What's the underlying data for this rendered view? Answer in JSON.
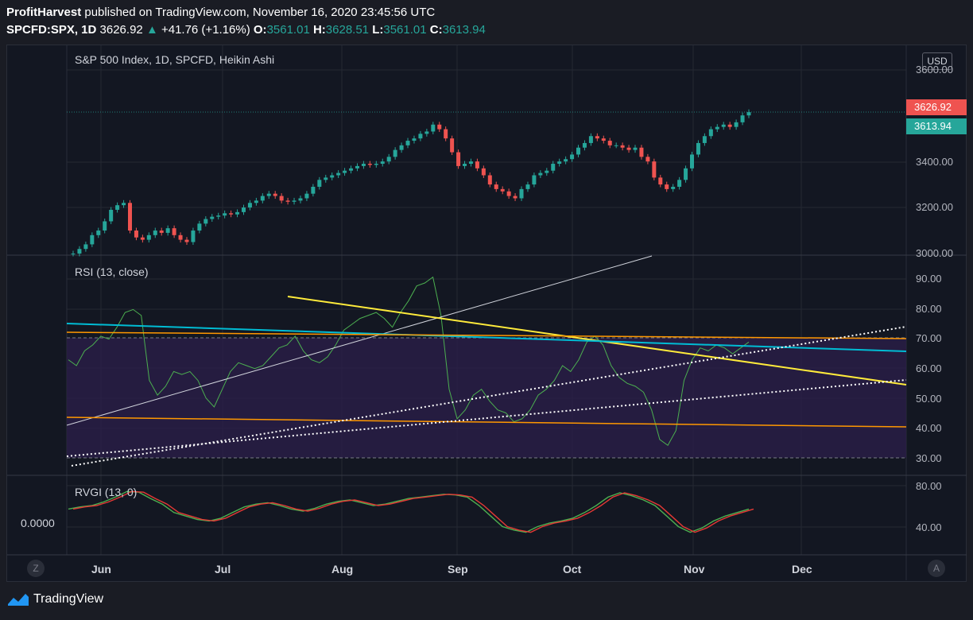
{
  "header": {
    "publisher": "ProfitHarvest",
    "published_text": "published on TradingView.com, November 16, 2020 23:45:56 UTC",
    "symbol": "SPCFD:SPX, 1D",
    "last": "3626.92",
    "change": "+41.76 (+1.16%)",
    "o_label": "O:",
    "o_value": "3561.01",
    "h_label": "H:",
    "h_value": "3628.51",
    "l_label": "L:",
    "l_value": "3561.01",
    "c_label": "C:",
    "c_value": "3613.94"
  },
  "main_pane": {
    "title": "S&P 500 Index, 1D, SPCFD, Heikin Ashi",
    "currency": "USD",
    "price_axis": [
      "3600.00",
      "3400.00",
      "3200.00",
      "3000.00"
    ],
    "last_price_tag": "3626.92",
    "close_price_tag": "3613.94",
    "colors": {
      "up": "#26a69a",
      "down": "#ef5350",
      "tag_last": "#ef5350",
      "tag_close": "#26a69a"
    }
  },
  "rsi_pane": {
    "title": "RSI (13, close)",
    "axis": [
      "90.00",
      "80.00",
      "70.00",
      "60.00",
      "50.00",
      "40.00",
      "30.00"
    ]
  },
  "rvgi_pane": {
    "title": "RVGI (13, 0)",
    "left_value": "0.0000",
    "axis": [
      "80.00",
      "40.00"
    ]
  },
  "time_axis": [
    "Jun",
    "Jul",
    "Aug",
    "Sep",
    "Oct",
    "Nov",
    "Dec"
  ],
  "buttons": {
    "log_scale": "Z",
    "auto_scale": "A"
  },
  "footer": {
    "brand": "TradingView"
  },
  "chart_data": {
    "type": "candlestick",
    "title": "S&P 500 Index, 1D, SPCFD, Heikin Ashi",
    "x": [
      "Jun",
      "Jul",
      "Aug",
      "Sep",
      "Oct",
      "Nov",
      "Dec"
    ],
    "price_close": [
      3000,
      3020,
      3040,
      3080,
      3100,
      3140,
      3190,
      3210,
      3220,
      3100,
      3070,
      3060,
      3080,
      3100,
      3090,
      3110,
      3080,
      3060,
      3050,
      3100,
      3130,
      3150,
      3160,
      3165,
      3175,
      3170,
      3180,
      3200,
      3220,
      3230,
      3250,
      3260,
      3250,
      3230,
      3225,
      3230,
      3240,
      3260,
      3290,
      3320,
      3330,
      3340,
      3350,
      3360,
      3370,
      3380,
      3390,
      3385,
      3390,
      3400,
      3420,
      3450,
      3470,
      3490,
      3500,
      3520,
      3530,
      3560,
      3540,
      3500,
      3440,
      3380,
      3390,
      3400,
      3370,
      3340,
      3300,
      3280,
      3270,
      3250,
      3240,
      3280,
      3300,
      3340,
      3350,
      3360,
      3390,
      3400,
      3410,
      3430,
      3460,
      3480,
      3510,
      3500,
      3490,
      3470,
      3470,
      3460,
      3450,
      3460,
      3420,
      3400,
      3330,
      3300,
      3280,
      3290,
      3320,
      3370,
      3430,
      3480,
      3510,
      3540,
      3550,
      3560,
      3550,
      3570,
      3600,
      3614
    ],
    "rsi": [
      62,
      60,
      65,
      67,
      70,
      69,
      73,
      78,
      79,
      77,
      55,
      50,
      53,
      58,
      57,
      58,
      55,
      49,
      46,
      52,
      58,
      61,
      60,
      59,
      60,
      63,
      66,
      67,
      70,
      65,
      62,
      61,
      63,
      67,
      72,
      74,
      76,
      77,
      78,
      76,
      73,
      78,
      82,
      87,
      88,
      90,
      77,
      52,
      42,
      45,
      50,
      52,
      48,
      45,
      44,
      41,
      42,
      45,
      50,
      52,
      55,
      60,
      58,
      62,
      68,
      70,
      67,
      60,
      56,
      54,
      53,
      51,
      45,
      35,
      33,
      38,
      55,
      62,
      66,
      65,
      67,
      66,
      64,
      66,
      68
    ],
    "rsi_levels": [
      70,
      30
    ],
    "rvgi": [
      0.55,
      0.58,
      0.6,
      0.65,
      0.72,
      0.8,
      0.79,
      0.7,
      0.62,
      0.5,
      0.45,
      0.4,
      0.38,
      0.42,
      0.5,
      0.58,
      0.62,
      0.64,
      0.6,
      0.55,
      0.52,
      0.56,
      0.62,
      0.66,
      0.68,
      0.64,
      0.6,
      0.62,
      0.66,
      0.7,
      0.72,
      0.74,
      0.76,
      0.75,
      0.72,
      0.6,
      0.45,
      0.3,
      0.25,
      0.22,
      0.3,
      0.35,
      0.38,
      0.42,
      0.5,
      0.6,
      0.72,
      0.78,
      0.74,
      0.68,
      0.6,
      0.45,
      0.3,
      0.22,
      0.28,
      0.38,
      0.45,
      0.5,
      0.55
    ],
    "price_axis_range": [
      3000,
      3680
    ],
    "rsi_axis_range": [
      25,
      95
    ],
    "rvgi_axis_range": [
      20,
      88
    ]
  }
}
